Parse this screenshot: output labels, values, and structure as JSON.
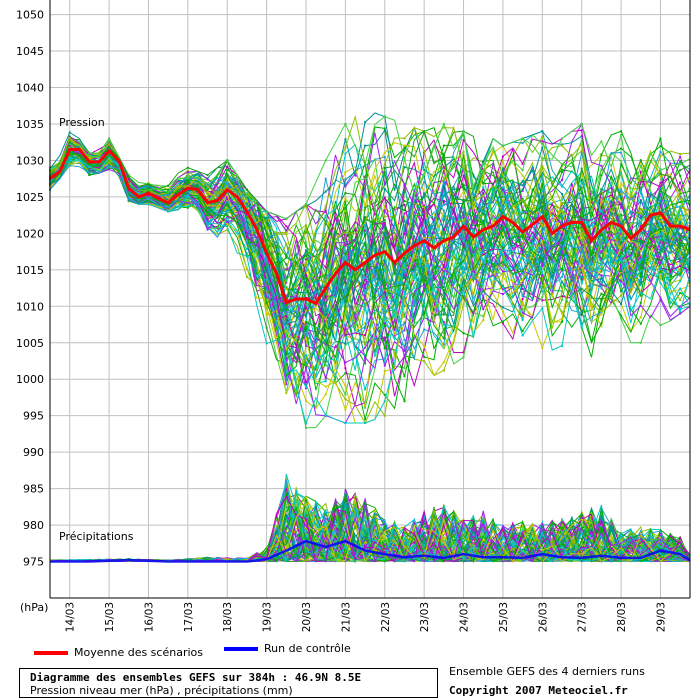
{
  "chart_data": {
    "type": "line",
    "y_ticks": [
      975,
      980,
      985,
      990,
      995,
      1000,
      1005,
      1010,
      1015,
      1020,
      1025,
      1030,
      1035,
      1040,
      1045,
      1050
    ],
    "ylim": [
      970,
      1052
    ],
    "y_unit_label": "(hPa)",
    "x_tick_labels": [
      "14/03",
      "15/03",
      "16/03",
      "17/03",
      "18/03",
      "19/03",
      "20/03",
      "21/03",
      "22/03",
      "23/03",
      "24/03",
      "25/03",
      "26/03",
      "27/03",
      "28/03",
      "29/03"
    ],
    "x_range_days": [
      13.5,
      29.75
    ],
    "sections": {
      "pressure": "Pression",
      "precip": "Précipitations"
    },
    "colors": {
      "mean": "#ff0000",
      "control": "#0000ff",
      "grid": "#c0c0c0",
      "members": [
        "#00b000",
        "#1aa01a",
        "#00c8c8",
        "#20a0d0",
        "#c000c0",
        "#a020f0",
        "#c8c800",
        "#90c000",
        "#40d040",
        "#009090"
      ]
    },
    "mean_series": {
      "name": "Moyenne des scénarios",
      "x": [
        13.5,
        13.75,
        14.0,
        14.25,
        14.5,
        14.75,
        15.0,
        15.25,
        15.5,
        15.75,
        16.0,
        16.25,
        16.5,
        16.75,
        17.0,
        17.25,
        17.5,
        17.75,
        18.0,
        18.25,
        18.5,
        18.75,
        19.0,
        19.25,
        19.5,
        19.75,
        20.0,
        20.25,
        20.5,
        20.75,
        21.0,
        21.25,
        21.5,
        21.75,
        22.0,
        22.25,
        22.5,
        22.75,
        23.0,
        23.25,
        23.5,
        23.75,
        24.0,
        24.25,
        24.5,
        24.75,
        25.0,
        25.25,
        25.5,
        25.75,
        26.0,
        26.25,
        26.5,
        26.75,
        27.0,
        27.25,
        27.5,
        27.75,
        28.0,
        28.25,
        28.5,
        28.75,
        29.0,
        29.25,
        29.5,
        29.75
      ],
      "y": [
        1027.5,
        1028.5,
        1031.5,
        1031.5,
        1029.8,
        1029.8,
        1031.3,
        1030.0,
        1026.2,
        1025.0,
        1025.5,
        1024.8,
        1024.2,
        1025.3,
        1026.2,
        1026.0,
        1024.2,
        1024.5,
        1026.0,
        1025.0,
        1023.0,
        1020.5,
        1017.3,
        1014.5,
        1010.5,
        1011.0,
        1011.0,
        1010.4,
        1012.5,
        1014.5,
        1016.0,
        1015.0,
        1016.0,
        1017.0,
        1017.5,
        1016.0,
        1017.3,
        1018.3,
        1019.0,
        1018.0,
        1019.0,
        1019.5,
        1021.0,
        1019.5,
        1020.5,
        1021.0,
        1022.3,
        1021.5,
        1020.2,
        1021.2,
        1022.3,
        1020.0,
        1021.0,
        1021.5,
        1021.5,
        1019.0,
        1020.5,
        1021.5,
        1021.0,
        1019.3,
        1020.5,
        1022.5,
        1022.8,
        1021.0,
        1021.0,
        1020.5
      ]
    },
    "control_series": {
      "name": "Run de contrôle",
      "x": [
        13.5,
        14.5,
        15.5,
        16.5,
        17.5,
        18.5,
        19.0,
        19.5,
        20.0,
        20.5,
        21.0,
        21.5,
        22.0,
        22.5,
        23.0,
        23.5,
        24.0,
        24.5,
        25.0,
        25.5,
        26.0,
        26.5,
        27.0,
        27.5,
        28.0,
        28.5,
        29.0,
        29.5,
        29.75
      ],
      "y": [
        975.0,
        975.0,
        975.2,
        975.0,
        975.0,
        975.0,
        975.3,
        976.5,
        977.8,
        977.0,
        977.8,
        976.5,
        976.0,
        975.6,
        975.8,
        975.5,
        976.0,
        975.6,
        975.6,
        975.5,
        976.0,
        975.6,
        975.5,
        975.8,
        975.5,
        975.5,
        976.5,
        976.0,
        975.2
      ]
    },
    "envelope_pressure": {
      "x": [
        13.5,
        14.0,
        14.5,
        15.0,
        15.5,
        16.0,
        16.5,
        17.0,
        17.5,
        18.0,
        18.5,
        19.0,
        19.5,
        20.0,
        20.5,
        21.0,
        21.5,
        22.0,
        22.5,
        23.0,
        23.5,
        24.0,
        24.5,
        25.0,
        25.5,
        26.0,
        26.5,
        27.0,
        27.5,
        28.0,
        28.5,
        29.0,
        29.5,
        29.75
      ],
      "lo": [
        1026.0,
        1029.0,
        1028.0,
        1028.5,
        1024.0,
        1024.0,
        1023.0,
        1023.5,
        1020.0,
        1018.0,
        1010.0,
        1000.0,
        994.0,
        991.0,
        995.0,
        994.0,
        994.0,
        995.0,
        997.0,
        1000.0,
        1001.0,
        1003.0,
        1005.0,
        1005.0,
        1006.0,
        1004.0,
        1004.0,
        1002.0,
        1004.0,
        1005.0,
        1005.0,
        1007.0,
        1009.0,
        1010.0
      ],
      "hi": [
        1030.0,
        1034.0,
        1032.0,
        1033.0,
        1028.0,
        1027.0,
        1027.5,
        1029.0,
        1028.0,
        1030.0,
        1026.0,
        1023.0,
        1022.0,
        1024.0,
        1030.0,
        1035.0,
        1037.0,
        1036.0,
        1035.0,
        1034.0,
        1035.0,
        1034.0,
        1034.0,
        1032.0,
        1033.0,
        1034.0,
        1033.0,
        1035.0,
        1033.0,
        1034.0,
        1032.0,
        1033.0,
        1032.0,
        1031.0
      ]
    },
    "envelope_precip": {
      "x": [
        13.5,
        14.5,
        15.5,
        16.5,
        17.5,
        18.5,
        19.0,
        19.5,
        20.0,
        20.5,
        21.0,
        21.5,
        22.0,
        22.5,
        23.0,
        23.5,
        24.0,
        24.5,
        25.0,
        25.5,
        26.0,
        26.5,
        27.0,
        27.5,
        28.0,
        28.5,
        29.0,
        29.5,
        29.75
      ],
      "hi": [
        975.2,
        975.3,
        975.4,
        975.2,
        975.6,
        975.5,
        977.0,
        987.0,
        984.0,
        983.0,
        985.0,
        984.0,
        981.0,
        980.0,
        982.0,
        983.0,
        981.0,
        982.0,
        980.0,
        981.0,
        980.5,
        981.0,
        982.0,
        983.0,
        979.0,
        980.0,
        979.5,
        978.5,
        976.0
      ]
    },
    "n_members": 84
  },
  "legend": {
    "mean_label": "Moyenne des scénarios",
    "control_label": "Run de contrôle"
  },
  "info": {
    "title": "Diagramme des ensembles GEFS sur 384h : 46.9N 8.5E",
    "subtitle": "Pression niveau mer (hPa) , précipitations (mm)",
    "right_line1": "Ensemble GEFS des 4 derniers runs",
    "right_line2": "Copyright 2007 Meteociel.fr"
  }
}
